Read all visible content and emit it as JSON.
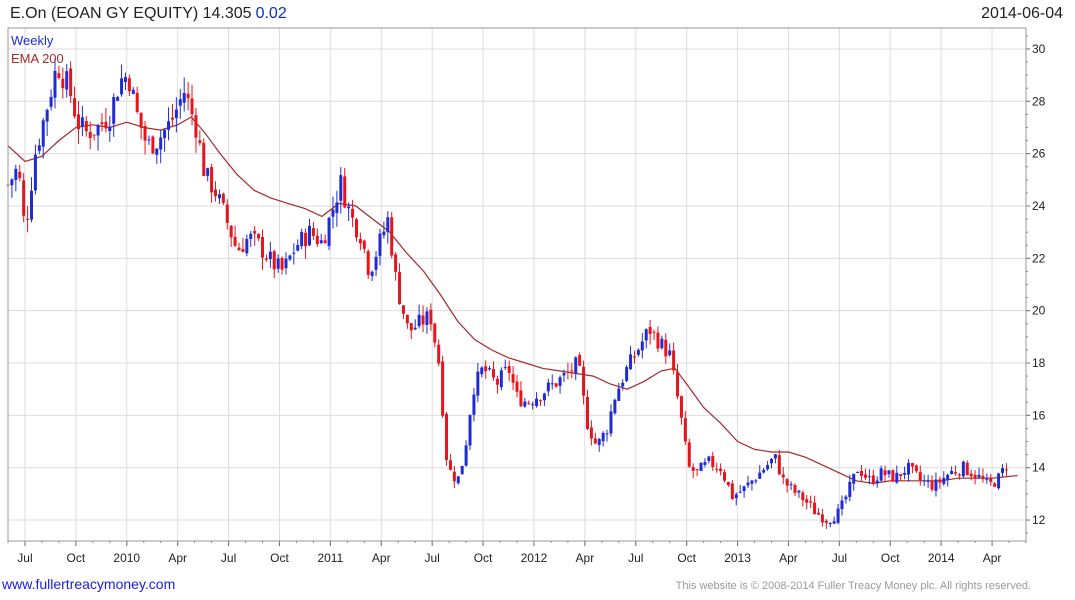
{
  "header": {
    "title": "E.On (EOAN GY EQUITY) 14.305",
    "change": "0.02",
    "date": "2014-06-04"
  },
  "legend": {
    "weekly_label": "Weekly",
    "ema_label": "EMA 200"
  },
  "footer": {
    "website": "www.fullertreacymoney.com",
    "copyright": "This website is © 2008-2014 Fuller Treacy Money plc. All rights reserved."
  },
  "colors": {
    "up": "#1f2bd6",
    "down": "#e8141c",
    "ema": "#a52a2a",
    "grid": "#dddddd",
    "chg": "#0b2fb8"
  },
  "chart_data": {
    "type": "candlestick",
    "ylim": [
      11.2,
      30.8
    ],
    "y_ticks": [
      12,
      14,
      16,
      18,
      20,
      22,
      24,
      26,
      28,
      30
    ],
    "x_ticks": [
      "Jul",
      "Oct",
      "2010",
      "Apr",
      "Jul",
      "Oct",
      "2011",
      "Apr",
      "Jul",
      "Oct",
      "2012",
      "Apr",
      "Jul",
      "Oct",
      "2013",
      "Apr",
      "Jul",
      "Oct",
      "2014",
      "Apr"
    ],
    "x_tick_months": [
      3,
      6,
      9,
      12,
      15,
      18,
      21,
      24,
      27,
      30,
      33,
      36,
      39,
      42,
      45,
      48,
      51,
      54,
      57,
      60
    ],
    "x_range_months": [
      2.0,
      62.0
    ],
    "price_anchors": [
      [
        2.0,
        24.8
      ],
      [
        2.6,
        25.5
      ],
      [
        3.0,
        23.0
      ],
      [
        3.6,
        26.0
      ],
      [
        4.3,
        27.8
      ],
      [
        4.9,
        29.4
      ],
      [
        5.6,
        28.5
      ],
      [
        6.1,
        27.2
      ],
      [
        6.6,
        26.8
      ],
      [
        7.3,
        27.0
      ],
      [
        8.0,
        27.5
      ],
      [
        8.6,
        28.8
      ],
      [
        9.1,
        29.0
      ],
      [
        9.6,
        27.5
      ],
      [
        10.2,
        26.3
      ],
      [
        10.8,
        26.5
      ],
      [
        11.6,
        27.2
      ],
      [
        12.4,
        28.4
      ],
      [
        13.1,
        27.0
      ],
      [
        13.6,
        25.2
      ],
      [
        14.2,
        24.6
      ],
      [
        14.8,
        23.6
      ],
      [
        15.5,
        22.3
      ],
      [
        16.2,
        22.8
      ],
      [
        16.8,
        22.5
      ],
      [
        17.6,
        21.8
      ],
      [
        18.2,
        21.5
      ],
      [
        19.0,
        22.5
      ],
      [
        19.8,
        23.0
      ],
      [
        20.5,
        22.6
      ],
      [
        21.1,
        23.8
      ],
      [
        21.6,
        24.9
      ],
      [
        22.2,
        23.6
      ],
      [
        22.8,
        22.9
      ],
      [
        23.3,
        21.5
      ],
      [
        23.8,
        22.4
      ],
      [
        24.4,
        23.5
      ],
      [
        24.9,
        21.0
      ],
      [
        25.6,
        19.2
      ],
      [
        26.2,
        19.5
      ],
      [
        26.9,
        19.8
      ],
      [
        27.4,
        18.0
      ],
      [
        27.9,
        14.0
      ],
      [
        28.5,
        13.5
      ],
      [
        28.9,
        14.5
      ],
      [
        29.4,
        17.0
      ],
      [
        30.0,
        17.8
      ],
      [
        30.8,
        17.2
      ],
      [
        31.5,
        17.8
      ],
      [
        32.0,
        16.7
      ],
      [
        32.6,
        16.5
      ],
      [
        33.3,
        16.8
      ],
      [
        34.2,
        17.2
      ],
      [
        35.0,
        17.6
      ],
      [
        35.6,
        18.0
      ],
      [
        36.1,
        15.8
      ],
      [
        36.7,
        14.8
      ],
      [
        37.3,
        15.5
      ],
      [
        37.8,
        16.8
      ],
      [
        38.5,
        17.8
      ],
      [
        39.2,
        18.6
      ],
      [
        39.8,
        19.3
      ],
      [
        40.4,
        18.8
      ],
      [
        41.0,
        18.3
      ],
      [
        41.6,
        16.2
      ],
      [
        42.1,
        14.0
      ],
      [
        42.6,
        13.8
      ],
      [
        43.3,
        14.2
      ],
      [
        44.0,
        14.0
      ],
      [
        44.7,
        12.9
      ],
      [
        45.4,
        13.2
      ],
      [
        46.0,
        13.6
      ],
      [
        46.6,
        14.0
      ],
      [
        47.2,
        14.4
      ],
      [
        47.7,
        13.5
      ],
      [
        48.3,
        13.1
      ],
      [
        48.9,
        12.8
      ],
      [
        49.6,
        12.3
      ],
      [
        50.3,
        12.0
      ],
      [
        51.0,
        12.3
      ],
      [
        51.6,
        13.2
      ],
      [
        52.1,
        14.0
      ],
      [
        52.8,
        13.5
      ],
      [
        53.5,
        13.8
      ],
      [
        54.3,
        13.6
      ],
      [
        55.0,
        14.0
      ],
      [
        55.8,
        13.5
      ],
      [
        56.6,
        13.3
      ],
      [
        57.5,
        13.8
      ],
      [
        58.3,
        14.0
      ],
      [
        59.1,
        13.7
      ],
      [
        59.8,
        13.3
      ],
      [
        60.4,
        13.6
      ],
      [
        61.0,
        14.3
      ]
    ],
    "ema_points": [
      [
        2.0,
        26.3
      ],
      [
        3.0,
        25.7
      ],
      [
        4.0,
        25.9
      ],
      [
        5.0,
        26.5
      ],
      [
        6.0,
        27.0
      ],
      [
        7.0,
        27.1
      ],
      [
        8.0,
        27.0
      ],
      [
        9.0,
        27.2
      ],
      [
        10.0,
        27.0
      ],
      [
        11.0,
        26.9
      ],
      [
        12.0,
        27.1
      ],
      [
        12.8,
        27.4
      ],
      [
        13.6,
        26.8
      ],
      [
        14.5,
        26.0
      ],
      [
        15.5,
        25.2
      ],
      [
        16.5,
        24.6
      ],
      [
        17.5,
        24.3
      ],
      [
        18.5,
        24.1
      ],
      [
        19.5,
        23.9
      ],
      [
        20.5,
        23.6
      ],
      [
        21.5,
        24.1
      ],
      [
        22.5,
        24.0
      ],
      [
        23.5,
        23.5
      ],
      [
        24.5,
        23.0
      ],
      [
        25.5,
        22.2
      ],
      [
        26.5,
        21.5
      ],
      [
        27.5,
        20.6
      ],
      [
        28.5,
        19.6
      ],
      [
        29.5,
        18.9
      ],
      [
        30.5,
        18.5
      ],
      [
        31.5,
        18.2
      ],
      [
        32.5,
        18.0
      ],
      [
        33.5,
        17.8
      ],
      [
        34.5,
        17.7
      ],
      [
        35.5,
        17.6
      ],
      [
        36.5,
        17.5
      ],
      [
        37.5,
        17.2
      ],
      [
        38.5,
        17.0
      ],
      [
        39.5,
        17.3
      ],
      [
        40.5,
        17.7
      ],
      [
        41.3,
        17.8
      ],
      [
        42.0,
        17.2
      ],
      [
        43.0,
        16.3
      ],
      [
        44.0,
        15.7
      ],
      [
        45.0,
        15.0
      ],
      [
        46.0,
        14.7
      ],
      [
        47.0,
        14.6
      ],
      [
        48.0,
        14.6
      ],
      [
        49.0,
        14.4
      ],
      [
        50.0,
        14.1
      ],
      [
        51.0,
        13.8
      ],
      [
        52.0,
        13.5
      ],
      [
        53.0,
        13.4
      ],
      [
        54.0,
        13.5
      ],
      [
        55.0,
        13.5
      ],
      [
        56.0,
        13.5
      ],
      [
        57.0,
        13.5
      ],
      [
        58.0,
        13.6
      ],
      [
        59.0,
        13.6
      ],
      [
        60.0,
        13.6
      ],
      [
        61.5,
        13.7
      ]
    ]
  }
}
